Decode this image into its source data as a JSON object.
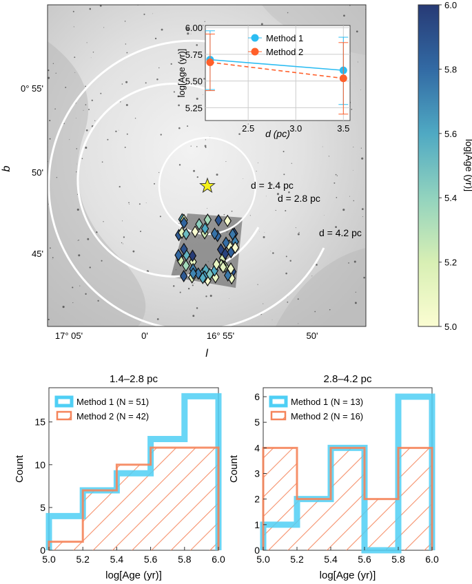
{
  "colors": {
    "method1": "#4fcff5",
    "method2": "#f5845a",
    "inset_m1": "#2bbcf2",
    "inset_m2": "#ff5f2a",
    "star": "#f4f019"
  },
  "map": {
    "xlabel": "l",
    "ylabel": "b",
    "xticks": [
      "17° 05'",
      "0'",
      "16° 55'",
      "50'"
    ],
    "yticks": [
      "0° 55'",
      "50'",
      "45'"
    ],
    "rings": [
      "d = 1.4 pc",
      "d = 2.8 pc",
      "d = 4.2 pc"
    ]
  },
  "colorbar": {
    "label": "log[Age (yr)]",
    "range": [
      5.0,
      6.0
    ],
    "ticks": [
      "5.0",
      "5.2",
      "5.4",
      "5.6",
      "5.8",
      "6.0"
    ]
  },
  "chart_data": [
    {
      "type": "line",
      "title": "",
      "xlabel": "d (pc)",
      "ylabel": "log[Age (yr)]",
      "xlim": [
        2.05,
        3.57
      ],
      "ylim": [
        5.13,
        6.02
      ],
      "xticks": [
        "2.5",
        "3.0",
        "3.5"
      ],
      "yticks": [
        "5.25",
        "5.50",
        "5.75",
        "6.00"
      ],
      "grid": true,
      "legend": "top-center",
      "series": [
        {
          "name": "Method 1",
          "x": [
            2.1,
            3.5
          ],
          "y": [
            5.7,
            5.6
          ],
          "err_low": [
            5.42,
            5.28
          ],
          "err_high": [
            5.97,
            5.91
          ]
        },
        {
          "name": "Method 2",
          "x": [
            2.1,
            3.5
          ],
          "y": [
            5.675,
            5.525
          ],
          "err_low": [
            5.41,
            5.19
          ],
          "err_high": [
            5.94,
            5.86
          ]
        }
      ]
    },
    {
      "type": "bar",
      "title": "1.4–2.8 pc",
      "xlabel": "log[Age (yr)]",
      "ylabel": "Count",
      "xlim": [
        5.0,
        6.0
      ],
      "ylim": [
        0,
        19
      ],
      "bin_edges": [
        5.0,
        5.2,
        5.4,
        5.6,
        5.8,
        6.0
      ],
      "xticks": [
        "5.0",
        "5.2",
        "5.4",
        "5.6",
        "5.8",
        "6.0"
      ],
      "yticks": [
        "0",
        "5",
        "10",
        "15"
      ],
      "legend": "top-left",
      "series": [
        {
          "name": "Method 1 (N = 51)",
          "values": [
            4,
            7,
            9,
            13,
            18
          ]
        },
        {
          "name": "Method 2 (N = 42)",
          "values": [
            1,
            7,
            10,
            12,
            12
          ]
        }
      ]
    },
    {
      "type": "bar",
      "title": "2.8–4.2 pc",
      "xlabel": "log[Age (yr)]",
      "ylabel": "Count",
      "xlim": [
        5.0,
        6.0
      ],
      "ylim": [
        0,
        6.35
      ],
      "bin_edges": [
        5.0,
        5.2,
        5.4,
        5.6,
        5.8,
        6.0
      ],
      "xticks": [
        "5.0",
        "5.2",
        "5.4",
        "5.6",
        "5.8",
        "6.0"
      ],
      "yticks": [
        "0",
        "1",
        "2",
        "3",
        "4",
        "5",
        "6"
      ],
      "legend": "top-left",
      "series": [
        {
          "name": "Method 1 (N = 13)",
          "values": [
            1,
            2,
            4,
            0,
            6
          ]
        },
        {
          "name": "Method 2 (N = 16)",
          "values": [
            4,
            2,
            4,
            2,
            4
          ]
        }
      ]
    }
  ]
}
